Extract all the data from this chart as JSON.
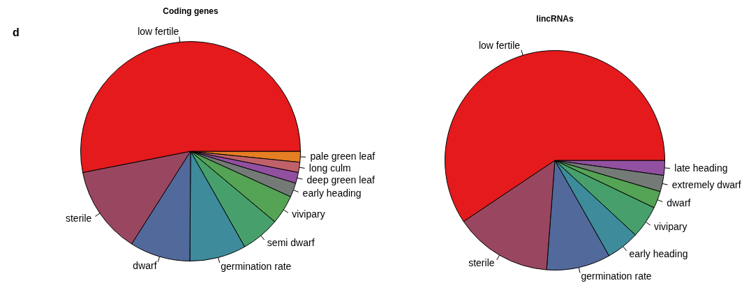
{
  "chart_data": [
    {
      "type": "pie",
      "title": "Coding genes",
      "annotations": [
        "d"
      ],
      "categories": [
        "low fertile",
        "sterile",
        "dwarf",
        "germination rate",
        "semi dwarf",
        "vivipary",
        "early heading",
        "deep green leaf",
        "long culm",
        "pale green leaf"
      ],
      "values": [
        53.1,
        12.9,
        8.9,
        8.3,
        5.7,
        4.3,
        2.1,
        1.6,
        1.5,
        1.6
      ],
      "colors": [
        "#e41a1c",
        "#994760",
        "#52699c",
        "#3e8b9b",
        "#47a06c",
        "#55a355",
        "#747b77",
        "#9250a0",
        "#c0616a",
        "#e67e22"
      ]
    },
    {
      "type": "pie",
      "title": "lincRNAs",
      "categories": [
        "low fertile",
        "sterile",
        "germination rate",
        "early heading",
        "vivipary",
        "dwarf",
        "extremely dwarf",
        "late heading"
      ],
      "values": [
        59.4,
        14.4,
        9.4,
        4.9,
        4.8,
        2.5,
        2.4,
        2.2
      ],
      "colors": [
        "#e41a1c",
        "#994760",
        "#52699c",
        "#3e8b9b",
        "#47a06c",
        "#55a355",
        "#747b77",
        "#9250a0"
      ]
    }
  ]
}
